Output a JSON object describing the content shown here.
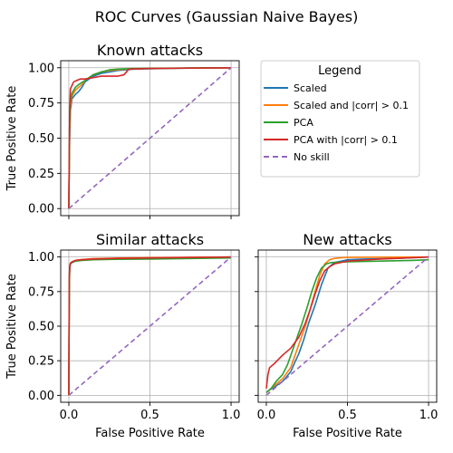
{
  "figure": {
    "suptitle": "ROC Curves (Gaussian Naive Bayes)"
  },
  "legend": {
    "title": "Legend",
    "placement": "top-right cell",
    "entries": [
      {
        "label": "Scaled",
        "color": "#1f77b4",
        "dashed": false
      },
      {
        "label": "Scaled and |corr| > 0.1",
        "color": "#ff7f0e",
        "dashed": false
      },
      {
        "label": "PCA",
        "color": "#2ca02c",
        "dashed": false
      },
      {
        "label": "PCA with |corr| > 0.1",
        "color": "#d62728",
        "dashed": false
      },
      {
        "label": "No skill",
        "color": "#9467bd",
        "dashed": true
      }
    ]
  },
  "chart_data": [
    {
      "type": "line",
      "title": "Known attacks",
      "xlabel": "",
      "ylabel": "True Positive Rate",
      "xlim": [
        -0.05,
        1.05
      ],
      "ylim": [
        -0.05,
        1.05
      ],
      "xticks": [
        "0.0",
        "0.5",
        "1.0"
      ],
      "yticks": [
        "0.00",
        "0.25",
        "0.50",
        "0.75",
        "1.00"
      ],
      "show_xticklabels": false,
      "show_yticklabels": true,
      "grid": true,
      "series": [
        {
          "name": "Scaled",
          "color": "#1f77b4",
          "x": [
            0,
            0.005,
            0.01,
            0.02,
            0.04,
            0.06,
            0.08,
            0.1,
            0.15,
            0.2,
            0.3,
            0.4,
            0.6,
            0.8,
            1.0
          ],
          "y": [
            0,
            0.5,
            0.7,
            0.78,
            0.81,
            0.83,
            0.86,
            0.9,
            0.94,
            0.96,
            0.98,
            0.99,
            0.995,
            0.998,
            1.0
          ]
        },
        {
          "name": "Scaled and |corr| > 0.1",
          "color": "#ff7f0e",
          "x": [
            0,
            0.005,
            0.01,
            0.02,
            0.04,
            0.06,
            0.08,
            0.1,
            0.15,
            0.2,
            0.25,
            0.35,
            0.5,
            0.8,
            1.0
          ],
          "y": [
            0,
            0.55,
            0.72,
            0.8,
            0.84,
            0.86,
            0.88,
            0.91,
            0.95,
            0.97,
            0.98,
            0.99,
            0.995,
            0.998,
            1.0
          ]
        },
        {
          "name": "PCA",
          "color": "#2ca02c",
          "x": [
            0,
            0.005,
            0.01,
            0.02,
            0.04,
            0.06,
            0.1,
            0.15,
            0.2,
            0.25,
            0.3,
            0.4,
            0.6,
            0.8,
            1.0
          ],
          "y": [
            0,
            0.6,
            0.75,
            0.82,
            0.86,
            0.88,
            0.91,
            0.95,
            0.97,
            0.985,
            0.99,
            0.995,
            0.997,
            0.999,
            1.0
          ]
        },
        {
          "name": "PCA with |corr| > 0.1",
          "color": "#d62728",
          "x": [
            0,
            0.005,
            0.01,
            0.03,
            0.05,
            0.07,
            0.1,
            0.15,
            0.2,
            0.25,
            0.3,
            0.34,
            0.37,
            0.5,
            0.7,
            0.9,
            1.0
          ],
          "y": [
            0,
            0.7,
            0.85,
            0.9,
            0.91,
            0.92,
            0.92,
            0.93,
            0.94,
            0.94,
            0.94,
            0.95,
            0.99,
            0.995,
            0.997,
            0.999,
            1.0
          ]
        },
        {
          "name": "No skill",
          "color": "#9467bd",
          "dashed": true,
          "x": [
            0,
            1
          ],
          "y": [
            0,
            1
          ]
        }
      ]
    },
    {
      "type": "line",
      "title": "Similar attacks",
      "xlabel": "False Positive Rate",
      "ylabel": "True Positive Rate",
      "xlim": [
        -0.05,
        1.05
      ],
      "ylim": [
        -0.05,
        1.05
      ],
      "xticks": [
        "0.0",
        "0.5",
        "1.0"
      ],
      "yticks": [
        "0.00",
        "0.25",
        "0.50",
        "0.75",
        "1.00"
      ],
      "show_xticklabels": true,
      "show_yticklabels": true,
      "grid": true,
      "series": [
        {
          "name": "Scaled",
          "color": "#1f77b4",
          "x": [
            0,
            0.003,
            0.006,
            0.01,
            0.02,
            0.04,
            0.08,
            0.15,
            0.3,
            0.5,
            0.8,
            1.0
          ],
          "y": [
            0,
            0.8,
            0.92,
            0.95,
            0.96,
            0.97,
            0.98,
            0.985,
            0.99,
            0.993,
            0.997,
            1.0
          ]
        },
        {
          "name": "Scaled and |corr| > 0.1",
          "color": "#ff7f0e",
          "x": [
            0,
            0.003,
            0.006,
            0.01,
            0.02,
            0.04,
            0.08,
            0.15,
            0.3,
            0.5,
            0.8,
            1.0
          ],
          "y": [
            0,
            0.82,
            0.93,
            0.955,
            0.965,
            0.975,
            0.982,
            0.988,
            0.992,
            0.995,
            0.998,
            1.0
          ]
        },
        {
          "name": "PCA",
          "color": "#2ca02c",
          "x": [
            0,
            0.003,
            0.006,
            0.01,
            0.02,
            0.04,
            0.08,
            0.15,
            0.3,
            0.5,
            0.8,
            1.0
          ],
          "y": [
            0,
            0.85,
            0.93,
            0.95,
            0.96,
            0.97,
            0.975,
            0.98,
            0.983,
            0.985,
            0.99,
            0.993
          ]
        },
        {
          "name": "PCA with |corr| > 0.1",
          "color": "#d62728",
          "x": [
            0,
            0.003,
            0.006,
            0.01,
            0.02,
            0.04,
            0.08,
            0.15,
            0.3,
            0.5,
            0.8,
            1.0
          ],
          "y": [
            0,
            0.86,
            0.935,
            0.955,
            0.965,
            0.975,
            0.98,
            0.985,
            0.99,
            0.993,
            0.997,
            1.0
          ]
        },
        {
          "name": "No skill",
          "color": "#9467bd",
          "dashed": true,
          "x": [
            0,
            1
          ],
          "y": [
            0,
            1
          ]
        }
      ]
    },
    {
      "type": "line",
      "title": "New attacks",
      "xlabel": "False Positive Rate",
      "ylabel": "",
      "xlim": [
        -0.05,
        1.05
      ],
      "ylim": [
        -0.05,
        1.05
      ],
      "xticks": [
        "0.0",
        "0.5",
        "1.0"
      ],
      "yticks": [
        "0.00",
        "0.25",
        "0.50",
        "0.75",
        "1.00"
      ],
      "show_xticklabels": true,
      "show_yticklabels": false,
      "grid": true,
      "series": [
        {
          "name": "Scaled",
          "color": "#1f77b4",
          "x": [
            0,
            0.02,
            0.05,
            0.1,
            0.15,
            0.18,
            0.2,
            0.23,
            0.26,
            0.3,
            0.34,
            0.38,
            0.42,
            0.46,
            0.5,
            0.6,
            0.8,
            1.0
          ],
          "y": [
            0.02,
            0.04,
            0.06,
            0.1,
            0.17,
            0.25,
            0.3,
            0.4,
            0.52,
            0.65,
            0.8,
            0.92,
            0.96,
            0.97,
            0.98,
            0.985,
            0.99,
            1.0
          ]
        },
        {
          "name": "Scaled and |corr| > 0.1",
          "color": "#ff7f0e",
          "x": [
            0,
            0.02,
            0.05,
            0.1,
            0.15,
            0.18,
            0.21,
            0.24,
            0.27,
            0.3,
            0.33,
            0.36,
            0.39,
            0.42,
            0.46,
            0.5,
            0.7,
            1.0
          ],
          "y": [
            0.02,
            0.04,
            0.07,
            0.12,
            0.2,
            0.3,
            0.4,
            0.5,
            0.62,
            0.75,
            0.87,
            0.95,
            0.98,
            0.99,
            0.995,
            0.997,
            0.999,
            1.0
          ]
        },
        {
          "name": "PCA",
          "color": "#2ca02c",
          "x": [
            0,
            0.03,
            0.06,
            0.1,
            0.13,
            0.16,
            0.19,
            0.22,
            0.25,
            0.28,
            0.31,
            0.34,
            0.37,
            0.4,
            0.5,
            0.7,
            0.9,
            1.0
          ],
          "y": [
            0.02,
            0.05,
            0.1,
            0.15,
            0.22,
            0.32,
            0.42,
            0.52,
            0.63,
            0.75,
            0.85,
            0.92,
            0.95,
            0.96,
            0.965,
            0.97,
            0.975,
            0.98
          ]
        },
        {
          "name": "PCA with |corr| > 0.1",
          "color": "#d62728",
          "x": [
            0,
            0.01,
            0.02,
            0.05,
            0.1,
            0.15,
            0.2,
            0.24,
            0.27,
            0.3,
            0.33,
            0.36,
            0.39,
            0.42,
            0.5,
            0.7,
            0.9,
            1.0
          ],
          "y": [
            0.05,
            0.15,
            0.2,
            0.23,
            0.29,
            0.34,
            0.42,
            0.52,
            0.62,
            0.73,
            0.83,
            0.9,
            0.93,
            0.95,
            0.97,
            0.985,
            0.995,
            1.0
          ]
        },
        {
          "name": "No skill",
          "color": "#9467bd",
          "dashed": true,
          "x": [
            0,
            1
          ],
          "y": [
            0,
            1
          ]
        }
      ]
    }
  ]
}
